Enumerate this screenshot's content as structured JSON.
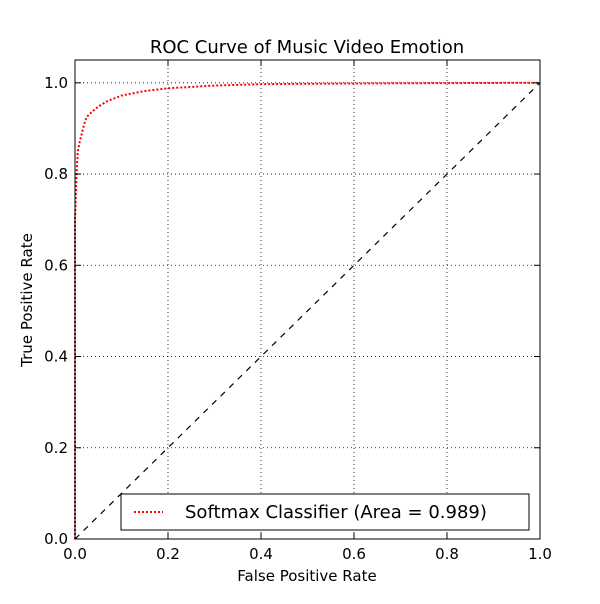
{
  "chart_data": {
    "type": "line",
    "title": "ROC Curve of Music Video Emotion",
    "xlabel": "False Positive Rate",
    "ylabel": "True Positive Rate",
    "xlim": [
      0.0,
      1.0
    ],
    "ylim": [
      0.0,
      1.05
    ],
    "x_ticks": [
      0.0,
      0.2,
      0.4,
      0.6,
      0.8,
      1.0
    ],
    "y_ticks": [
      0.0,
      0.2,
      0.4,
      0.6,
      0.8,
      1.0
    ],
    "x_tick_labels": [
      "0.0",
      "0.2",
      "0.4",
      "0.6",
      "0.8",
      "1.0"
    ],
    "y_tick_labels": [
      "0.0",
      "0.2",
      "0.4",
      "0.6",
      "0.8",
      "1.0"
    ],
    "grid": true,
    "legend_position": "bottom-right",
    "series": [
      {
        "name": "Softmax Classifier (Area = 0.989)",
        "color": "#ff0000",
        "line_style": "dotted",
        "x": [
          0.0,
          0.0,
          0.002,
          0.004,
          0.006,
          0.01,
          0.015,
          0.02,
          0.025,
          0.035,
          0.05,
          0.07,
          0.1,
          0.15,
          0.2,
          0.3,
          0.4,
          0.5,
          0.7,
          1.0
        ],
        "y": [
          0.0,
          0.7,
          0.76,
          0.81,
          0.85,
          0.87,
          0.89,
          0.91,
          0.925,
          0.935,
          0.948,
          0.96,
          0.972,
          0.982,
          0.988,
          0.994,
          0.997,
          0.998,
          0.999,
          1.0
        ]
      },
      {
        "name": "",
        "color": "#000000",
        "line_style": "dashed",
        "x": [
          0.0,
          1.0
        ],
        "y": [
          0.0,
          1.0
        ]
      }
    ]
  }
}
